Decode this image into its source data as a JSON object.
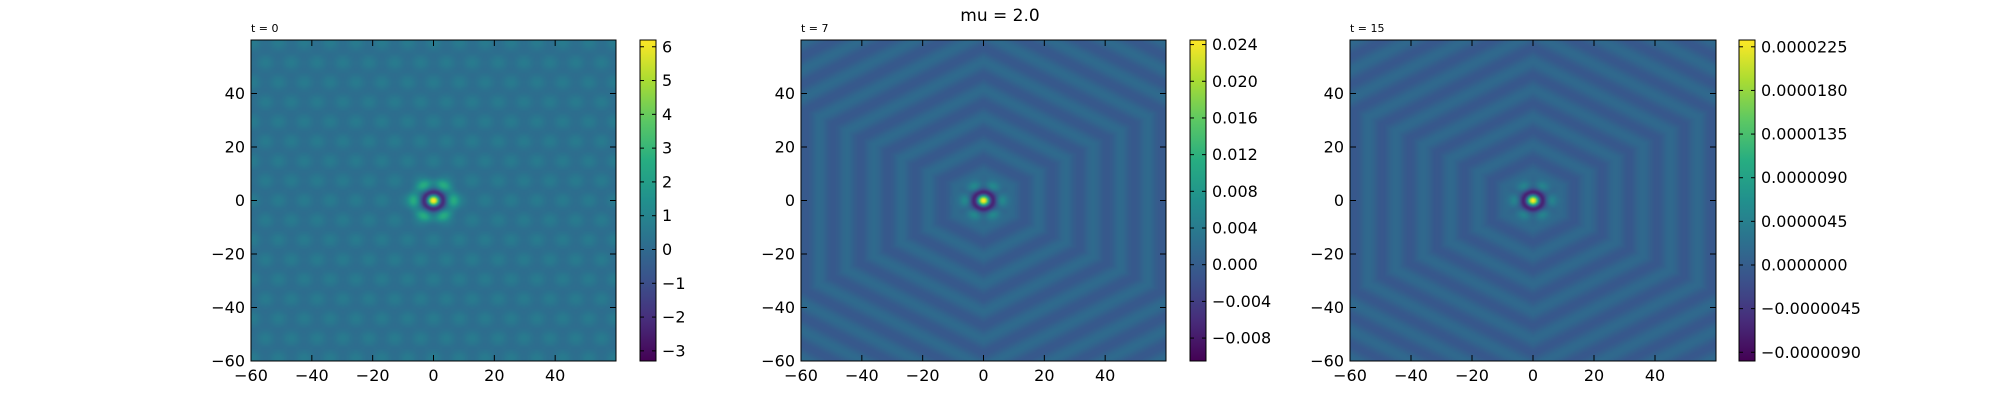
{
  "figure": {
    "suptitle": "mu = 2.0"
  },
  "colors": {
    "colormap": "viridis",
    "axis": "#000000",
    "background": "#ffffff"
  },
  "chart_data": [
    {
      "type": "heatmap",
      "title": "t = 0",
      "xlabel": "",
      "ylabel": "",
      "xlim": [
        -60,
        60
      ],
      "ylim": [
        -60,
        60
      ],
      "xticks": [
        -60,
        -40,
        -20,
        0,
        20,
        40
      ],
      "yticks": [
        -60,
        -40,
        -20,
        0,
        20,
        40
      ],
      "grid": false,
      "colorbar": {
        "vmin": -3.3,
        "vmax": 6.2,
        "ticks": [
          -3,
          -2,
          -1,
          0,
          1,
          2,
          3,
          4,
          5,
          6
        ],
        "tick_labels": [
          "−3",
          "−2",
          "−1",
          "0",
          "1",
          "2",
          "3",
          "4",
          "5",
          "6"
        ]
      },
      "field": {
        "pattern": "hexagonal lattice with localized central peak",
        "background_value": 0.3,
        "lattice_amplitude": 0.35,
        "lattice_spacing": 8.5,
        "peak_value": 6.0,
        "ring_peak_value": 2.2,
        "ring_radius": 6.5,
        "trough_value": -3.0,
        "center": [
          0,
          0
        ]
      }
    },
    {
      "type": "heatmap",
      "title": "t = 7",
      "xlabel": "",
      "ylabel": "",
      "xlim": [
        -60,
        60
      ],
      "ylim": [
        -60,
        60
      ],
      "xticks": [
        -60,
        -40,
        -20,
        0,
        20,
        40
      ],
      "yticks": [
        -60,
        -40,
        -20,
        0,
        20,
        40
      ],
      "grid": false,
      "colorbar": {
        "vmin": -0.0105,
        "vmax": 0.0245,
        "ticks": [
          -0.008,
          -0.004,
          0.0,
          0.004,
          0.008,
          0.012,
          0.016,
          0.02,
          0.024
        ],
        "tick_labels": [
          "−0.008",
          "−0.004",
          "0.000",
          "0.004",
          "0.008",
          "0.012",
          "0.016",
          "0.020",
          "0.024"
        ]
      },
      "field": {
        "pattern": "hexagonal outgoing wavefronts around central peak",
        "background_value": 0.0005,
        "wave_amplitude": 0.0012,
        "wavelength": 9.0,
        "peak_value": 0.024,
        "ring_peak_value": 0.006,
        "ring_radius": 6.0,
        "trough_value": -0.0095,
        "center": [
          0,
          0
        ]
      }
    },
    {
      "type": "heatmap",
      "title": "t = 15",
      "xlabel": "",
      "ylabel": "",
      "xlim": [
        -60,
        60
      ],
      "ylim": [
        -60,
        60
      ],
      "xticks": [
        -60,
        -40,
        -20,
        0,
        20,
        40
      ],
      "yticks": [
        -60,
        -40,
        -20,
        0,
        20,
        40
      ],
      "grid": false,
      "colorbar": {
        "vmin": -9.9e-06,
        "vmax": 2.32e-05,
        "ticks": [
          -9e-06,
          -4.5e-06,
          0.0,
          4.5e-06,
          9e-06,
          1.35e-05,
          1.8e-05,
          2.25e-05
        ],
        "tick_labels": [
          "−0.0000090",
          "−0.0000045",
          "0.0000000",
          "0.0000045",
          "0.0000090",
          "0.0000135",
          "0.0000180",
          "0.0000225"
        ]
      },
      "field": {
        "pattern": "hexagonal outgoing wavefronts around central peak",
        "background_value": 4e-07,
        "wave_amplitude": 1.1e-06,
        "wavelength": 9.0,
        "peak_value": 2.25e-05,
        "ring_peak_value": 5e-06,
        "ring_radius": 6.0,
        "trough_value": -9e-06,
        "center": [
          0,
          0
        ]
      }
    }
  ]
}
